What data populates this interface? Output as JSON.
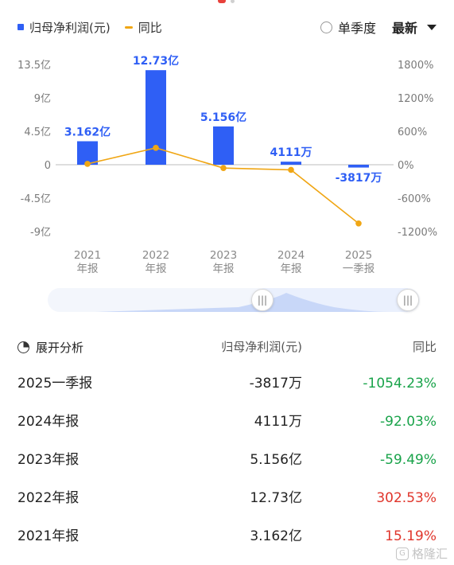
{
  "legend": {
    "bar_label": "归母净利润(元)",
    "line_label": "同比"
  },
  "controls": {
    "quarter_label": "单季度",
    "latest_label": "最新"
  },
  "chart_data": {
    "type": "bar",
    "categories": [
      "2021 年报",
      "2022 年报",
      "2023 年报",
      "2024 年报",
      "2025 一季报"
    ],
    "category_lines": [
      [
        "2021",
        "年报"
      ],
      [
        "2022",
        "年报"
      ],
      [
        "2023",
        "年报"
      ],
      [
        "2024",
        "年报"
      ],
      [
        "2025",
        "一季报"
      ]
    ],
    "series": [
      {
        "name": "归母净利润(元)",
        "type": "bar",
        "values": [
          3.162,
          12.73,
          5.156,
          0.4111,
          -0.3817
        ],
        "unit": "亿",
        "labels": [
          "3.162亿",
          "12.73亿",
          "5.156亿",
          "4111万",
          "-3817万"
        ],
        "color": "#2f5ff5"
      },
      {
        "name": "同比",
        "type": "line",
        "values": [
          15.19,
          302.53,
          -59.49,
          -92.03,
          -1054.23
        ],
        "unit": "%",
        "color": "#f0a614"
      }
    ],
    "y_left": {
      "ticks": [
        13.5,
        9,
        4.5,
        0,
        -4.5,
        -9
      ],
      "tick_labels": [
        "13.5亿",
        "9亿",
        "4.5亿",
        "0",
        "-4.5亿",
        "-9亿"
      ],
      "range": [
        -9,
        13.5
      ]
    },
    "y_right": {
      "ticks": [
        1800,
        1200,
        600,
        0,
        -600,
        -1200
      ],
      "tick_labels": [
        "1800%",
        "1200%",
        "600%",
        "0%",
        "-600%",
        "-1200%"
      ],
      "range": [
        -1200,
        1800
      ]
    },
    "grid": false
  },
  "table": {
    "expand_label": "展开分析",
    "col_profit": "归母净利润(元)",
    "col_yoy": "同比",
    "rows": [
      {
        "period": "2025一季报",
        "profit": "-3817万",
        "yoy": "-1054.23%",
        "trend": "neg"
      },
      {
        "period": "2024年报",
        "profit": "4111万",
        "yoy": "-92.03%",
        "trend": "neg"
      },
      {
        "period": "2023年报",
        "profit": "5.156亿",
        "yoy": "-59.49%",
        "trend": "neg"
      },
      {
        "period": "2022年报",
        "profit": "12.73亿",
        "yoy": "302.53%",
        "trend": "pos"
      },
      {
        "period": "2021年报",
        "profit": "3.162亿",
        "yoy": "15.19%",
        "trend": "pos"
      }
    ]
  },
  "watermark": {
    "text": "格隆汇",
    "icon": "logo-icon"
  },
  "colors": {
    "bar": "#2f5ff5",
    "line": "#f0a614",
    "negative": "#19a34a",
    "positive": "#e0352b"
  }
}
